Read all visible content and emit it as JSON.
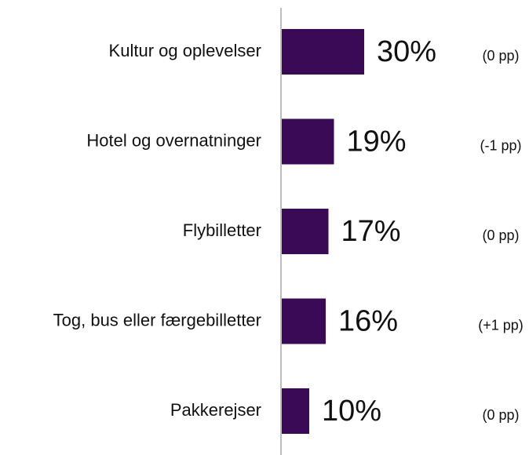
{
  "chart_data": {
    "type": "bar",
    "orientation": "horizontal",
    "categories": [
      "Kultur og oplevelser",
      "Hotel og overnatninger",
      "Flybilletter",
      "Tog, bus eller færgebilletter",
      "Pakkerejser"
    ],
    "values": [
      30,
      19,
      17,
      16,
      10
    ],
    "value_labels": [
      "30%",
      "19%",
      "17%",
      "16%",
      "10%"
    ],
    "changes": [
      "(0 pp)",
      "(-1 pp)",
      "(0 pp)",
      "(+1 pp)",
      "(0 pp)"
    ],
    "color": "#3a0a56"
  }
}
